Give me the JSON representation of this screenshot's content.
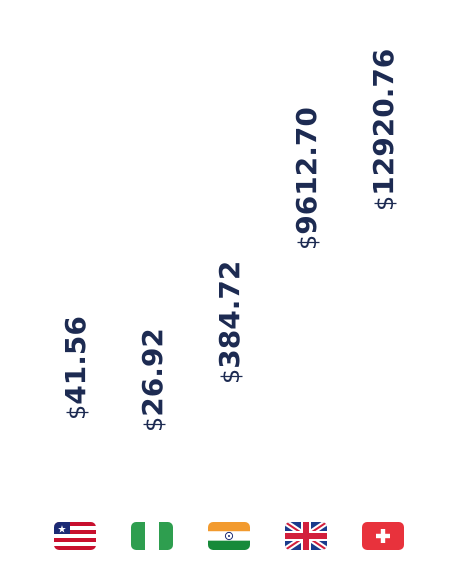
{
  "chart_data": {
    "type": "bar",
    "title": "",
    "xlabel": "",
    "ylabel": "",
    "categories": [
      "Liberia",
      "Nigeria",
      "India",
      "United Kingdom",
      "Switzerland"
    ],
    "values": [
      41.56,
      26.92,
      384.72,
      9612.7,
      12920.76
    ],
    "data_labels": [
      "41.56",
      "26.92",
      "384.72",
      "9612.70",
      "12920.76"
    ],
    "currency_symbol": "$",
    "bars_visible": false,
    "grid": false,
    "legend": "none",
    "flag_icons": [
      "liberia-flag-icon",
      "nigeria-flag-icon",
      "india-flag-icon",
      "uk-flag-icon",
      "switzerland-flag-icon"
    ]
  },
  "colors": {
    "label_text": "#1d2b52",
    "liberia_red": "#c8102e",
    "liberia_blue": "#1b2a74",
    "nigeria_green": "#2e9e4f",
    "india_saffron": "#f29a2e",
    "india_green": "#178a3a",
    "india_chakra": "#1b2a74",
    "uk_blue": "#1b3b8c",
    "uk_red": "#d21f3c",
    "swiss_red": "#e8323c"
  }
}
